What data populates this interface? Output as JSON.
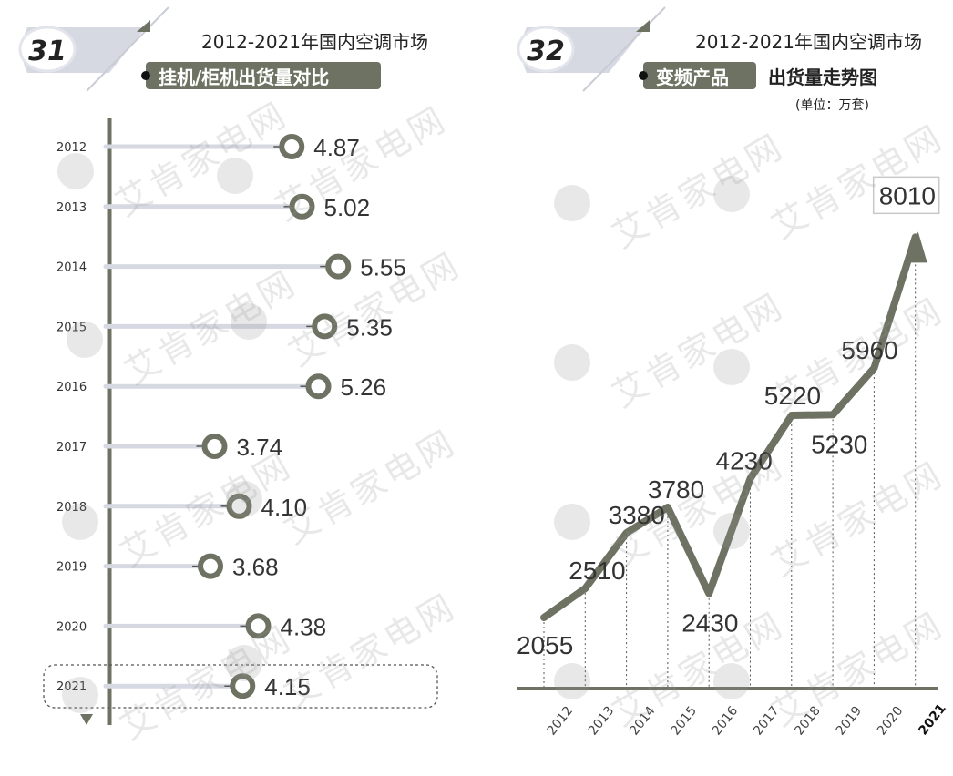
{
  "colors": {
    "accent": "#6e7262",
    "track": "#d6d9e2",
    "pill": "#e3e5ec",
    "watermark": "#a0a0a0"
  },
  "watermark": {
    "text": "艾肯家电网",
    "logo_icon": "aiken-logo-icon"
  },
  "panel_left": {
    "number": "31",
    "title": "2012-2021年国内空调市场",
    "subtitle": "挂机/柜机出货量对比"
  },
  "panel_right": {
    "number": "32",
    "title": "2012-2021年国内空调市场",
    "subtitle_highlight": "变频产品",
    "subtitle_rest": "出货量走势图",
    "unit": "(单位：万套)"
  },
  "chart_data": [
    {
      "type": "bar",
      "orientation": "horizontal",
      "title": "挂机/柜机出货量对比",
      "categories": [
        "2012",
        "2013",
        "2014",
        "2015",
        "2016",
        "2017",
        "2018",
        "2019",
        "2020",
        "2021"
      ],
      "value_labels": [
        "4.87",
        "5.02",
        "5.55",
        "5.35",
        "5.26",
        "3.74",
        "4.10",
        "3.68",
        "4.38",
        "4.15"
      ],
      "values": [
        4.87,
        5.02,
        5.55,
        5.35,
        5.26,
        3.74,
        4.1,
        3.68,
        4.38,
        4.15
      ],
      "highlighted_category": "2021",
      "grid": false
    },
    {
      "type": "line",
      "title": "变频产品出货量走势图",
      "unit": "(单位：万套)",
      "categories": [
        "2012",
        "2013",
        "2014",
        "2015",
        "2016",
        "2017",
        "2018",
        "2019",
        "2020",
        "2021"
      ],
      "values": [
        2055,
        2510,
        3380,
        3780,
        2430,
        4230,
        5220,
        5230,
        5960,
        8010
      ],
      "value_labels": [
        "2055",
        "2510",
        "3380",
        "3780",
        "2430",
        "4230",
        "5220",
        "5230",
        "5960",
        "8010"
      ],
      "highlighted_category": "2021",
      "ylim": [
        1000,
        8200
      ],
      "grid": false
    }
  ]
}
